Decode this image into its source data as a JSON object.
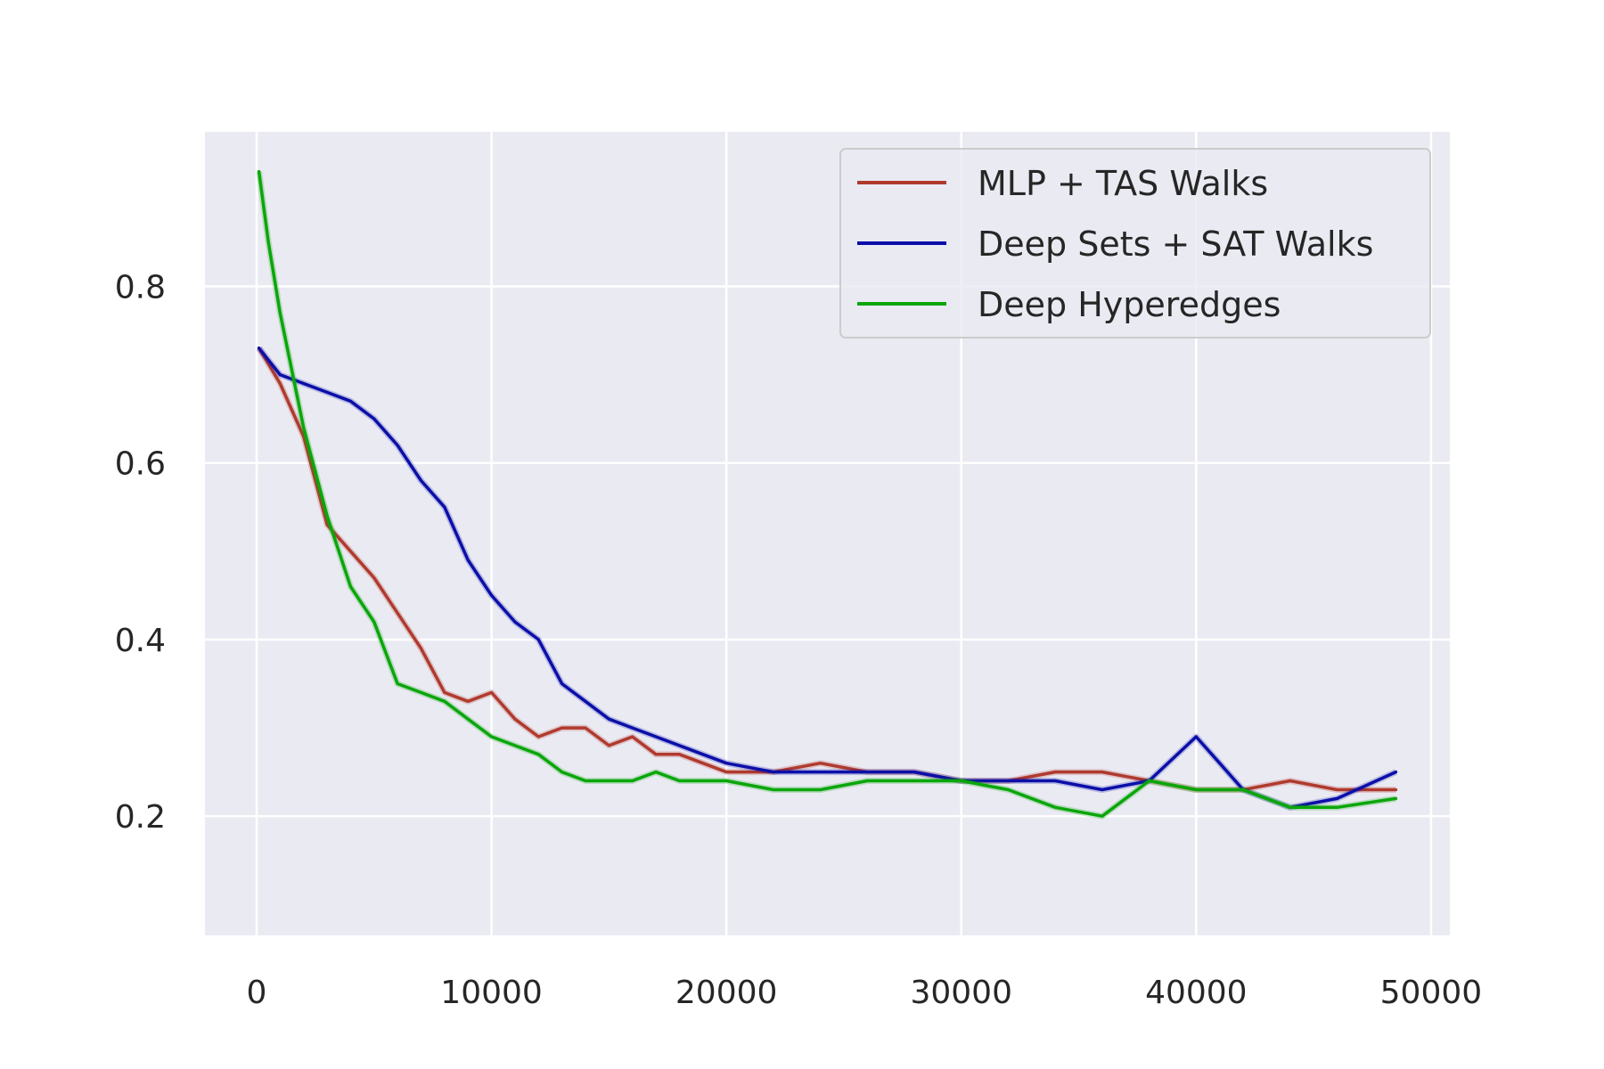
{
  "chart_data": {
    "type": "line",
    "title": "",
    "xlabel": "",
    "ylabel": "",
    "xlim": [
      -2200,
      50800
    ],
    "ylim": [
      0.065,
      0.975
    ],
    "xticks": [
      0,
      10000,
      20000,
      30000,
      40000,
      50000
    ],
    "xtick_labels": [
      "0",
      "10000",
      "20000",
      "30000",
      "40000",
      "50000"
    ],
    "yticks": [
      0.2,
      0.4,
      0.6,
      0.8
    ],
    "ytick_labels": [
      "0.2",
      "0.4",
      "0.6",
      "0.8"
    ],
    "grid": true,
    "legend_position": "top-right",
    "series": [
      {
        "name": "MLP + TAS Walks",
        "color": "#b03a2e",
        "x": [
          100,
          1000,
          2000,
          3000,
          4000,
          5000,
          6000,
          7000,
          8000,
          9000,
          10000,
          11000,
          12000,
          13000,
          14000,
          15000,
          16000,
          17000,
          18000,
          19000,
          20000,
          22000,
          24000,
          26000,
          28000,
          30000,
          32000,
          34000,
          36000,
          38000,
          40000,
          42000,
          44000,
          46000,
          48500
        ],
        "values": [
          0.73,
          0.69,
          0.63,
          0.53,
          0.5,
          0.47,
          0.43,
          0.39,
          0.34,
          0.33,
          0.34,
          0.31,
          0.29,
          0.3,
          0.3,
          0.28,
          0.29,
          0.27,
          0.27,
          0.26,
          0.25,
          0.25,
          0.26,
          0.25,
          0.25,
          0.24,
          0.24,
          0.25,
          0.25,
          0.24,
          0.23,
          0.23,
          0.24,
          0.23,
          0.23
        ]
      },
      {
        "name": "Deep Sets + SAT Walks",
        "color": "#0b0fa8",
        "x": [
          100,
          1000,
          2000,
          3000,
          4000,
          5000,
          6000,
          7000,
          8000,
          9000,
          10000,
          11000,
          12000,
          13000,
          14000,
          15000,
          16000,
          17000,
          18000,
          19000,
          20000,
          22000,
          24000,
          26000,
          28000,
          30000,
          32000,
          34000,
          36000,
          38000,
          40000,
          41000,
          42000,
          44000,
          46000,
          48500
        ],
        "values": [
          0.73,
          0.7,
          0.69,
          0.68,
          0.67,
          0.65,
          0.62,
          0.58,
          0.55,
          0.49,
          0.45,
          0.42,
          0.4,
          0.35,
          0.33,
          0.31,
          0.3,
          0.29,
          0.28,
          0.27,
          0.26,
          0.25,
          0.25,
          0.25,
          0.25,
          0.24,
          0.24,
          0.24,
          0.23,
          0.24,
          0.29,
          0.26,
          0.23,
          0.21,
          0.22,
          0.25
        ]
      },
      {
        "name": "Deep Hyperedges",
        "color": "#0aa60a",
        "x": [
          100,
          500,
          1000,
          2000,
          3000,
          4000,
          5000,
          6000,
          7000,
          8000,
          9000,
          10000,
          11000,
          12000,
          13000,
          14000,
          15000,
          16000,
          17000,
          18000,
          19000,
          20000,
          22000,
          24000,
          26000,
          28000,
          30000,
          32000,
          34000,
          36000,
          38000,
          40000,
          42000,
          44000,
          46000,
          48500
        ],
        "values": [
          0.93,
          0.85,
          0.77,
          0.64,
          0.54,
          0.46,
          0.42,
          0.35,
          0.34,
          0.33,
          0.31,
          0.29,
          0.28,
          0.27,
          0.25,
          0.24,
          0.24,
          0.24,
          0.25,
          0.24,
          0.24,
          0.24,
          0.23,
          0.23,
          0.24,
          0.24,
          0.24,
          0.23,
          0.21,
          0.2,
          0.24,
          0.23,
          0.23,
          0.21,
          0.21,
          0.22
        ]
      }
    ]
  }
}
